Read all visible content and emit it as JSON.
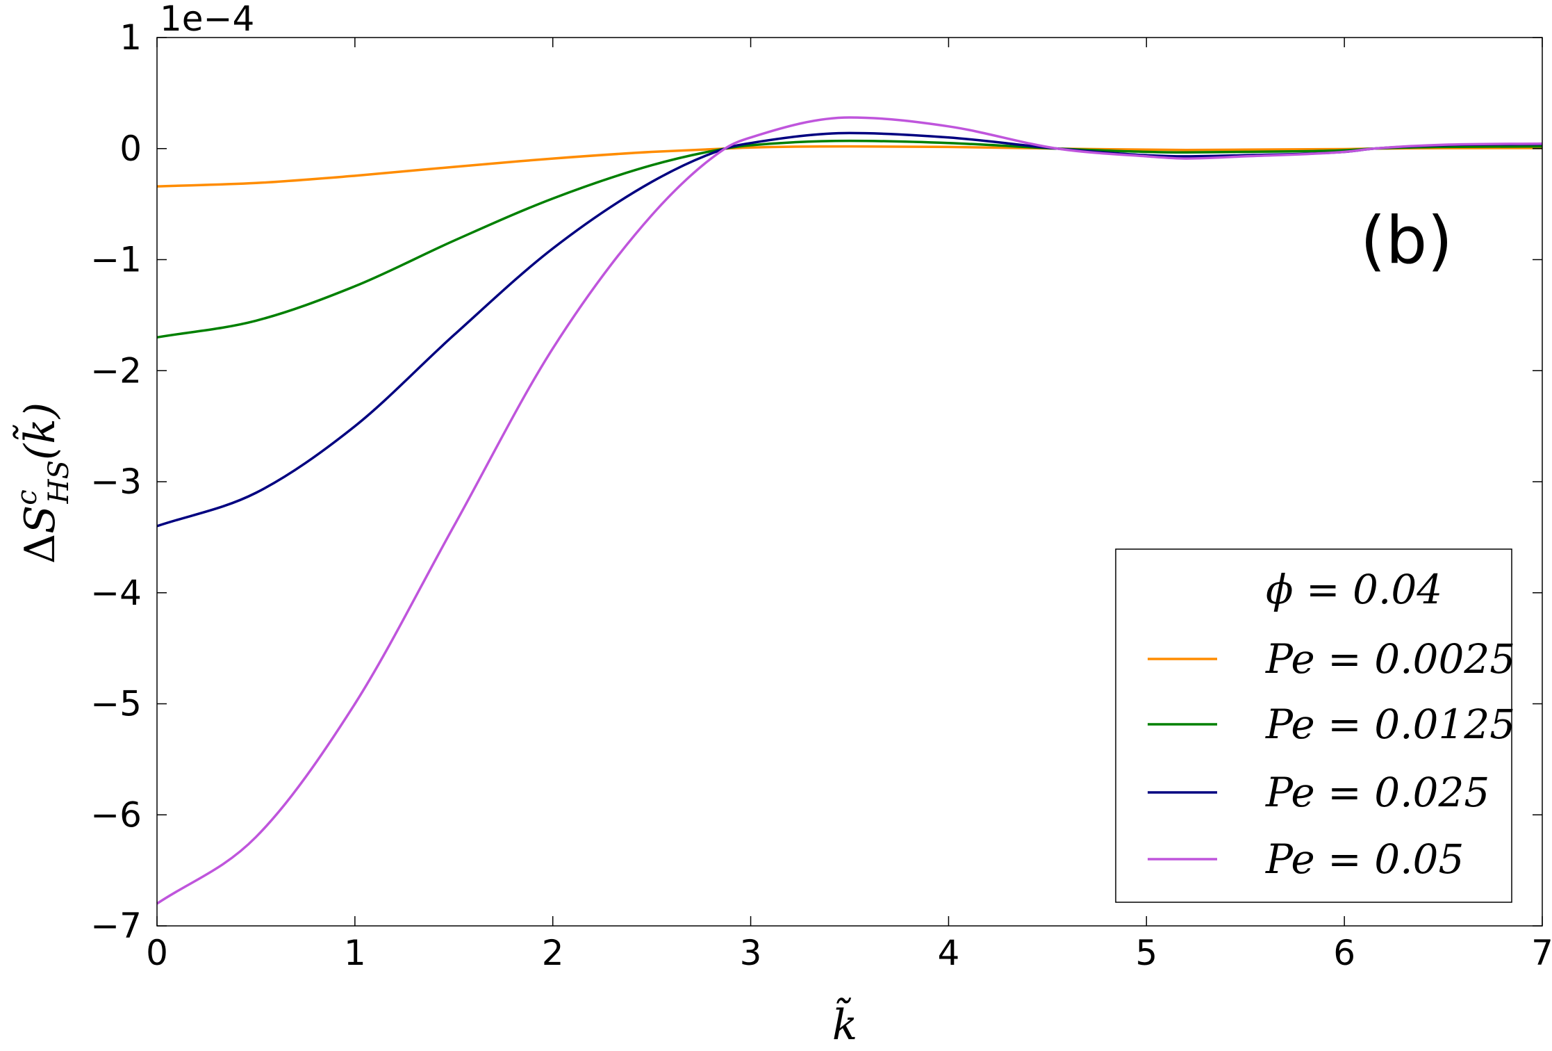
{
  "chart_data": {
    "type": "line",
    "panel_label": "(b)",
    "scale_note": "1e−4",
    "xlabel": "k̃",
    "ylabel_parts": {
      "delta": "Δ",
      "S": "S",
      "sup": "c",
      "sub": "HS",
      "arg": "(k̃)"
    },
    "xlim": [
      0,
      7
    ],
    "ylim": [
      -7,
      1
    ],
    "xticks": [
      0,
      1,
      2,
      3,
      4,
      5,
      6,
      7
    ],
    "xtick_labels": [
      "0",
      "1",
      "2",
      "3",
      "4",
      "5",
      "6",
      "7"
    ],
    "yticks": [
      1,
      0,
      -1,
      -2,
      -3,
      -4,
      -5,
      -6,
      -7
    ],
    "ytick_labels": [
      "1",
      "0",
      "−1",
      "−2",
      "−3",
      "−4",
      "−5",
      "−6",
      "−7"
    ],
    "grid": false,
    "legend": {
      "placement": "lower-right",
      "title": "ϕ = 0.04",
      "entries": [
        "Pe = 0.0025",
        "Pe = 0.0125",
        "Pe = 0.025",
        "Pe = 0.05"
      ]
    },
    "x": [
      0,
      0.5,
      1.0,
      1.5,
      2.0,
      2.5,
      2.87,
      3.0,
      3.5,
      4.0,
      4.55,
      5.0,
      5.2,
      5.5,
      6.0,
      6.15,
      6.5,
      7.0
    ],
    "series": [
      {
        "name": "Pe = 0.0025",
        "color": "#ff8c00",
        "values": [
          -0.34,
          -0.31,
          -0.245,
          -0.165,
          -0.09,
          -0.03,
          0.0,
          0.01,
          0.02,
          0.015,
          0.0,
          -0.01,
          -0.012,
          -0.01,
          -0.005,
          0.0,
          0.004,
          0.005
        ]
      },
      {
        "name": "Pe = 0.0125",
        "color": "#008000",
        "values": [
          -1.7,
          -1.55,
          -1.24,
          -0.83,
          -0.45,
          -0.15,
          0.0,
          0.03,
          0.07,
          0.05,
          0.0,
          -0.03,
          -0.035,
          -0.03,
          -0.015,
          0.0,
          0.015,
          0.02
        ]
      },
      {
        "name": "Pe = 0.025",
        "color": "#000080",
        "values": [
          -3.4,
          -3.1,
          -2.5,
          -1.68,
          -0.9,
          -0.3,
          0.0,
          0.05,
          0.14,
          0.1,
          0.0,
          -0.06,
          -0.07,
          -0.06,
          -0.03,
          0.0,
          0.03,
          0.04
        ]
      },
      {
        "name": "Pe = 0.05",
        "color": "#bf55dc",
        "values": [
          -6.8,
          -6.2,
          -5.0,
          -3.4,
          -1.8,
          -0.6,
          0.0,
          0.1,
          0.28,
          0.2,
          0.0,
          -0.07,
          -0.09,
          -0.07,
          -0.03,
          0.0,
          0.035,
          0.045
        ]
      }
    ]
  }
}
